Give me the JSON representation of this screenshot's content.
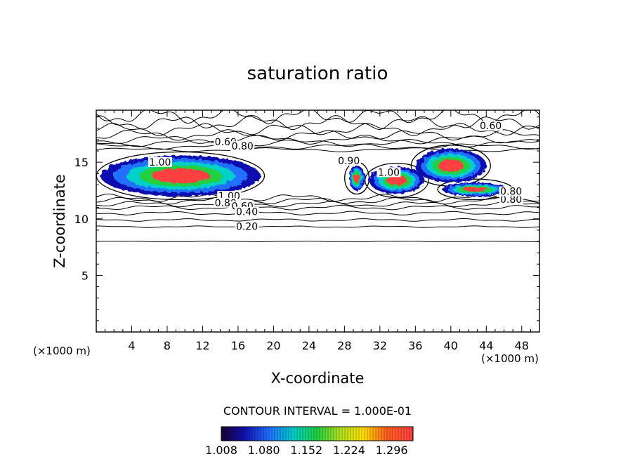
{
  "chart_data": {
    "type": "contour",
    "title": "saturation ratio",
    "xlabel": "X-coordinate",
    "ylabel": "Z-coordinate",
    "x_unit_left": "(×1000 m)",
    "x_unit_right": "(×1000 m)",
    "xlim": [
      0,
      50
    ],
    "ylim": [
      0,
      19.6
    ],
    "x_ticks": [
      4,
      8,
      12,
      16,
      20,
      24,
      28,
      32,
      36,
      40,
      44,
      48
    ],
    "x_tick_labels": [
      "4",
      "8",
      "12",
      "16",
      "20",
      "24",
      "28",
      "32",
      "36",
      "40",
      "44",
      "48"
    ],
    "y_ticks": [
      5,
      10,
      15
    ],
    "y_tick_labels": [
      "5",
      "10",
      "15"
    ],
    "contour_interval_text": "CONTOUR INTERVAL = 1.000E-01",
    "colorbar": {
      "min": 1.008,
      "max": 1.332,
      "tick_values": [
        1.008,
        1.08,
        1.152,
        1.224,
        1.296
      ],
      "tick_labels": [
        "1.008",
        "1.080",
        "1.152",
        "1.224",
        "1.296"
      ]
    },
    "contour_labels": [
      {
        "text": "0.60",
        "x": 44.5,
        "z": 18.1
      },
      {
        "text": "0.60",
        "x": 14.6,
        "z": 16.7
      },
      {
        "text": "0.80",
        "x": 16.5,
        "z": 16.3
      },
      {
        "text": "1.00",
        "x": 7.2,
        "z": 14.9
      },
      {
        "text": "0.90",
        "x": 28.5,
        "z": 15.0
      },
      {
        "text": "1.00",
        "x": 33.0,
        "z": 14.0
      },
      {
        "text": "1.00",
        "x": 15.0,
        "z": 11.9
      },
      {
        "text": "0.80",
        "x": 14.6,
        "z": 11.3
      },
      {
        "text": "0.60",
        "x": 16.5,
        "z": 11.0
      },
      {
        "text": "0.40",
        "x": 17.0,
        "z": 10.5
      },
      {
        "text": "0.20",
        "x": 17.0,
        "z": 9.2
      },
      {
        "text": "0.80",
        "x": 46.8,
        "z": 11.6
      },
      {
        "text": "0.80",
        "x": 46.8,
        "z": 12.3
      }
    ],
    "cloud_regions": [
      {
        "x": [
          0.5,
          18.5
        ],
        "z": [
          12.0,
          15.6
        ],
        "peak": 1.33
      },
      {
        "x": [
          28.5,
          30.3
        ],
        "z": [
          12.5,
          14.7
        ],
        "peak": 1.28
      },
      {
        "x": [
          30.8,
          37.0
        ],
        "z": [
          12.2,
          14.6
        ],
        "peak": 1.3
      },
      {
        "x": [
          36.0,
          44.0
        ],
        "z": [
          13.2,
          16.2
        ],
        "peak": 1.33
      },
      {
        "x": [
          39.0,
          46.5
        ],
        "z": [
          12.0,
          13.2
        ],
        "peak": 1.3
      }
    ]
  }
}
